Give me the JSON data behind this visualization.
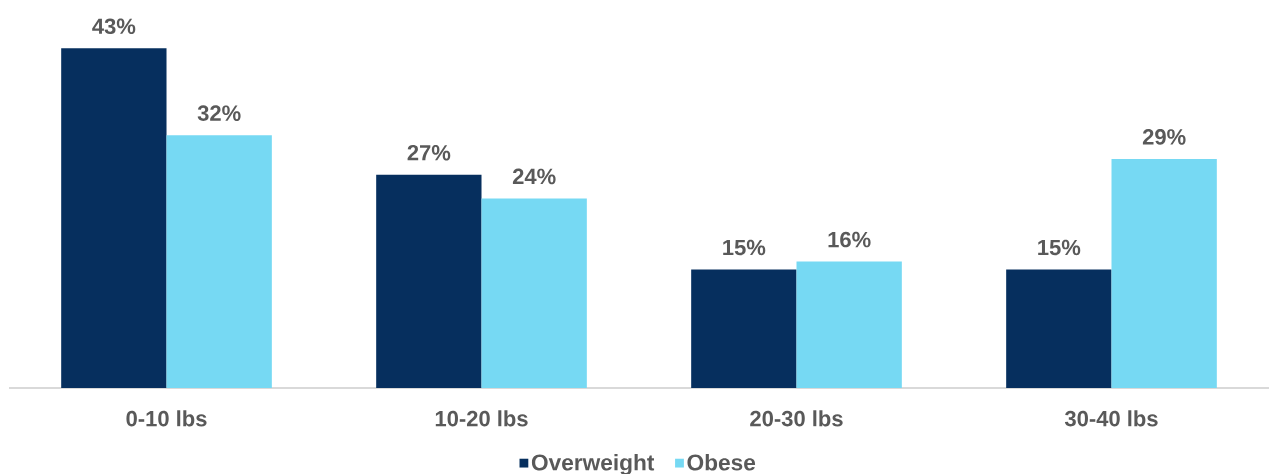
{
  "chart_data": {
    "type": "bar",
    "categories": [
      "0-10 lbs",
      "10-20 lbs",
      "20-30 lbs",
      "30-40 lbs"
    ],
    "series": [
      {
        "name": "Overweight",
        "color": "#062f5e",
        "values": [
          43,
          27,
          15,
          15
        ],
        "value_labels": [
          "43%",
          "27%",
          "15%",
          "15%"
        ]
      },
      {
        "name": "Obese",
        "color": "#76d9f3",
        "values": [
          32,
          24,
          16,
          29
        ],
        "value_labels": [
          "32%",
          "24%",
          "16%",
          "29%"
        ]
      }
    ],
    "legend": "bottom",
    "tick_labels": "x"
  }
}
